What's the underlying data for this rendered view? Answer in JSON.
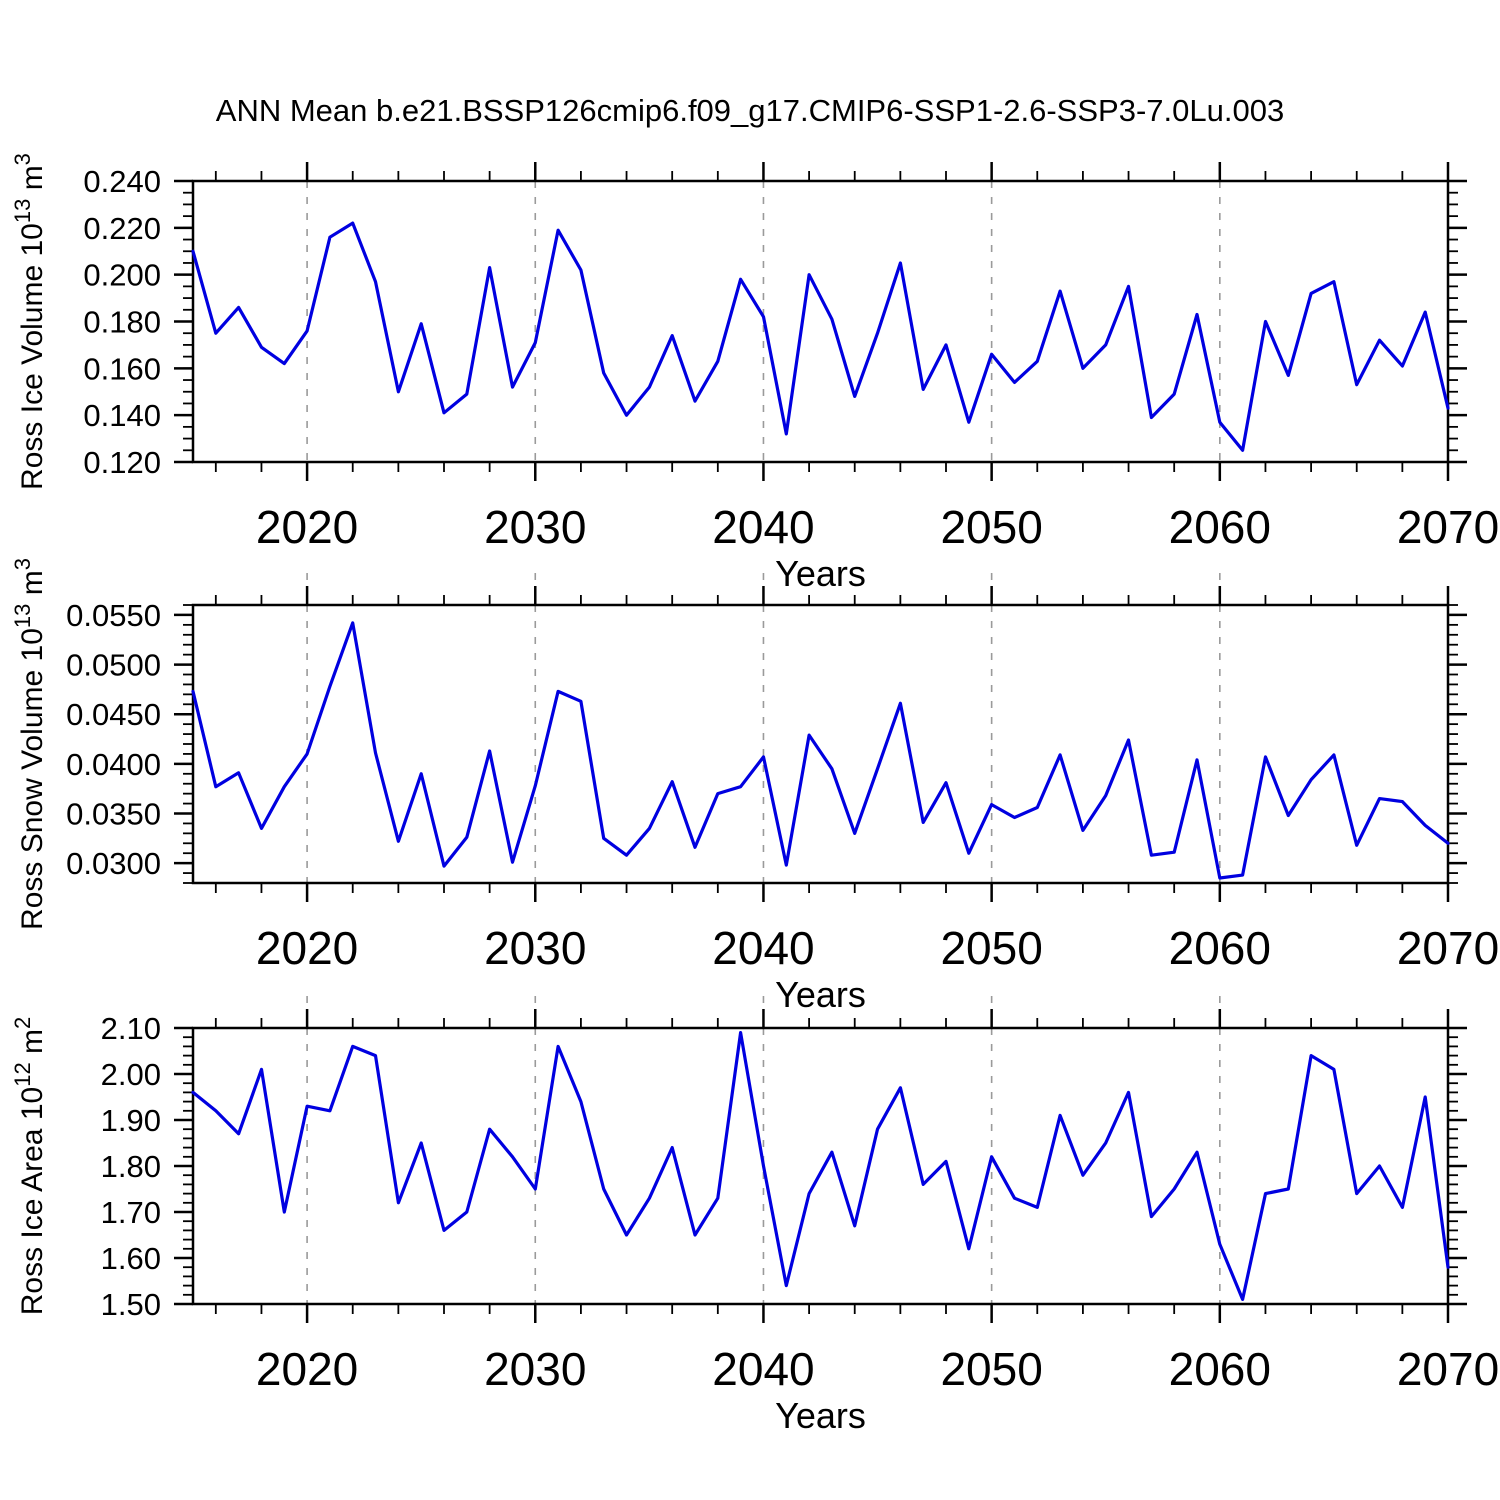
{
  "title": "ANN Mean b.e21.BSSP126cmip6.f09_g17.CMIP6-SSP1-2.6-SSP3-7.0Lu.003",
  "colors": {
    "line": "#0000e0",
    "grid": "#9a9a9a",
    "axis": "#000000",
    "text": "#000000",
    "background": "#ffffff"
  },
  "x_axis": {
    "label": "Years",
    "range": [
      2015,
      2070
    ],
    "major_ticks": [
      2020,
      2030,
      2040,
      2050,
      2060,
      2070
    ],
    "minor_step": 2,
    "gridlines": [
      2020,
      2030,
      2040,
      2050,
      2060
    ]
  },
  "years": [
    2015,
    2016,
    2017,
    2018,
    2019,
    2020,
    2021,
    2022,
    2023,
    2024,
    2025,
    2026,
    2027,
    2028,
    2029,
    2030,
    2031,
    2032,
    2033,
    2034,
    2035,
    2036,
    2037,
    2038,
    2039,
    2040,
    2041,
    2042,
    2043,
    2044,
    2045,
    2046,
    2047,
    2048,
    2049,
    2050,
    2051,
    2052,
    2053,
    2054,
    2055,
    2056,
    2057,
    2058,
    2059,
    2060,
    2061,
    2062,
    2063,
    2064,
    2065,
    2066,
    2067,
    2068,
    2069,
    2070
  ],
  "chart_data": [
    {
      "type": "line",
      "name": "ross-ice-volume",
      "ylabel_plain": "Ross Ice Volume 10^13 m^3",
      "ylabel": {
        "text": "Ross Ice Volume 10",
        "sup": "13",
        "unit": " m",
        "unit_sup": "3"
      },
      "xlabel": "Years",
      "ylim": [
        0.12,
        0.24
      ],
      "yticks": [
        {
          "value": 0.24,
          "label": "0.240"
        },
        {
          "value": 0.22,
          "label": "0.220"
        },
        {
          "value": 0.2,
          "label": "0.200"
        },
        {
          "value": 0.18,
          "label": "0.180"
        },
        {
          "value": 0.16,
          "label": "0.160"
        },
        {
          "value": 0.14,
          "label": "0.140"
        },
        {
          "value": 0.12,
          "label": "0.120"
        }
      ],
      "ytick_minor_step": 0.005,
      "values": [
        0.21,
        0.175,
        0.186,
        0.169,
        0.162,
        0.176,
        0.216,
        0.222,
        0.197,
        0.15,
        0.179,
        0.141,
        0.149,
        0.203,
        0.152,
        0.171,
        0.219,
        0.202,
        0.158,
        0.14,
        0.152,
        0.174,
        0.146,
        0.163,
        0.198,
        0.182,
        0.132,
        0.2,
        0.181,
        0.148,
        0.175,
        0.205,
        0.151,
        0.17,
        0.137,
        0.166,
        0.154,
        0.163,
        0.193,
        0.16,
        0.17,
        0.195,
        0.139,
        0.149,
        0.183,
        0.137,
        0.125,
        0.18,
        0.157,
        0.192,
        0.197,
        0.153,
        0.172,
        0.161,
        0.184,
        0.143
      ]
    },
    {
      "type": "line",
      "name": "ross-snow-volume",
      "ylabel_plain": "Ross Snow Volume 10^13 m^3",
      "ylabel": {
        "text": "Ross Snow Volume 10",
        "sup": "13",
        "unit": " m",
        "unit_sup": "3"
      },
      "xlabel": "Years",
      "ylim": [
        0.028,
        0.056
      ],
      "yticks": [
        {
          "value": 0.055,
          "label": "0.0550"
        },
        {
          "value": 0.05,
          "label": "0.0500"
        },
        {
          "value": 0.045,
          "label": "0.0450"
        },
        {
          "value": 0.04,
          "label": "0.0400"
        },
        {
          "value": 0.035,
          "label": "0.0350"
        },
        {
          "value": 0.03,
          "label": "0.0300"
        }
      ],
      "ytick_minor_step": 0.001,
      "values": [
        0.0473,
        0.0377,
        0.0391,
        0.0335,
        0.0377,
        0.041,
        0.0478,
        0.0542,
        0.0411,
        0.0322,
        0.039,
        0.0297,
        0.0326,
        0.0413,
        0.0301,
        0.0378,
        0.0473,
        0.0463,
        0.0325,
        0.0308,
        0.0335,
        0.0382,
        0.0316,
        0.037,
        0.0377,
        0.0407,
        0.0298,
        0.0429,
        0.0395,
        0.033,
        0.0395,
        0.0461,
        0.0341,
        0.0381,
        0.031,
        0.0359,
        0.0346,
        0.0356,
        0.0409,
        0.0333,
        0.0368,
        0.0424,
        0.0308,
        0.0311,
        0.0404,
        0.0285,
        0.0288,
        0.0407,
        0.0348,
        0.0384,
        0.0409,
        0.0318,
        0.0365,
        0.0362,
        0.0338,
        0.032
      ]
    },
    {
      "type": "line",
      "name": "ross-ice-area",
      "ylabel_plain": "Ross Ice Area 10^12 m^2",
      "ylabel": {
        "text": "Ross Ice Area 10",
        "sup": "12",
        "unit": " m",
        "unit_sup": "2"
      },
      "xlabel": "Years",
      "ylim": [
        1.5,
        2.1
      ],
      "yticks": [
        {
          "value": 2.1,
          "label": "2.10"
        },
        {
          "value": 2.0,
          "label": "2.00"
        },
        {
          "value": 1.9,
          "label": "1.90"
        },
        {
          "value": 1.8,
          "label": "1.80"
        },
        {
          "value": 1.7,
          "label": "1.70"
        },
        {
          "value": 1.6,
          "label": "1.60"
        },
        {
          "value": 1.5,
          "label": "1.50"
        }
      ],
      "ytick_minor_step": 0.02,
      "values": [
        1.96,
        1.92,
        1.87,
        2.01,
        1.7,
        1.93,
        1.92,
        2.06,
        2.04,
        1.72,
        1.85,
        1.66,
        1.7,
        1.88,
        1.82,
        1.75,
        2.06,
        1.94,
        1.75,
        1.65,
        1.73,
        1.84,
        1.65,
        1.73,
        2.09,
        1.8,
        1.54,
        1.74,
        1.83,
        1.67,
        1.88,
        1.97,
        1.76,
        1.81,
        1.62,
        1.82,
        1.73,
        1.71,
        1.91,
        1.78,
        1.85,
        1.96,
        1.69,
        1.75,
        1.83,
        1.63,
        1.51,
        1.74,
        1.75,
        2.04,
        2.01,
        1.74,
        1.8,
        1.71,
        1.95,
        1.58
      ]
    }
  ]
}
